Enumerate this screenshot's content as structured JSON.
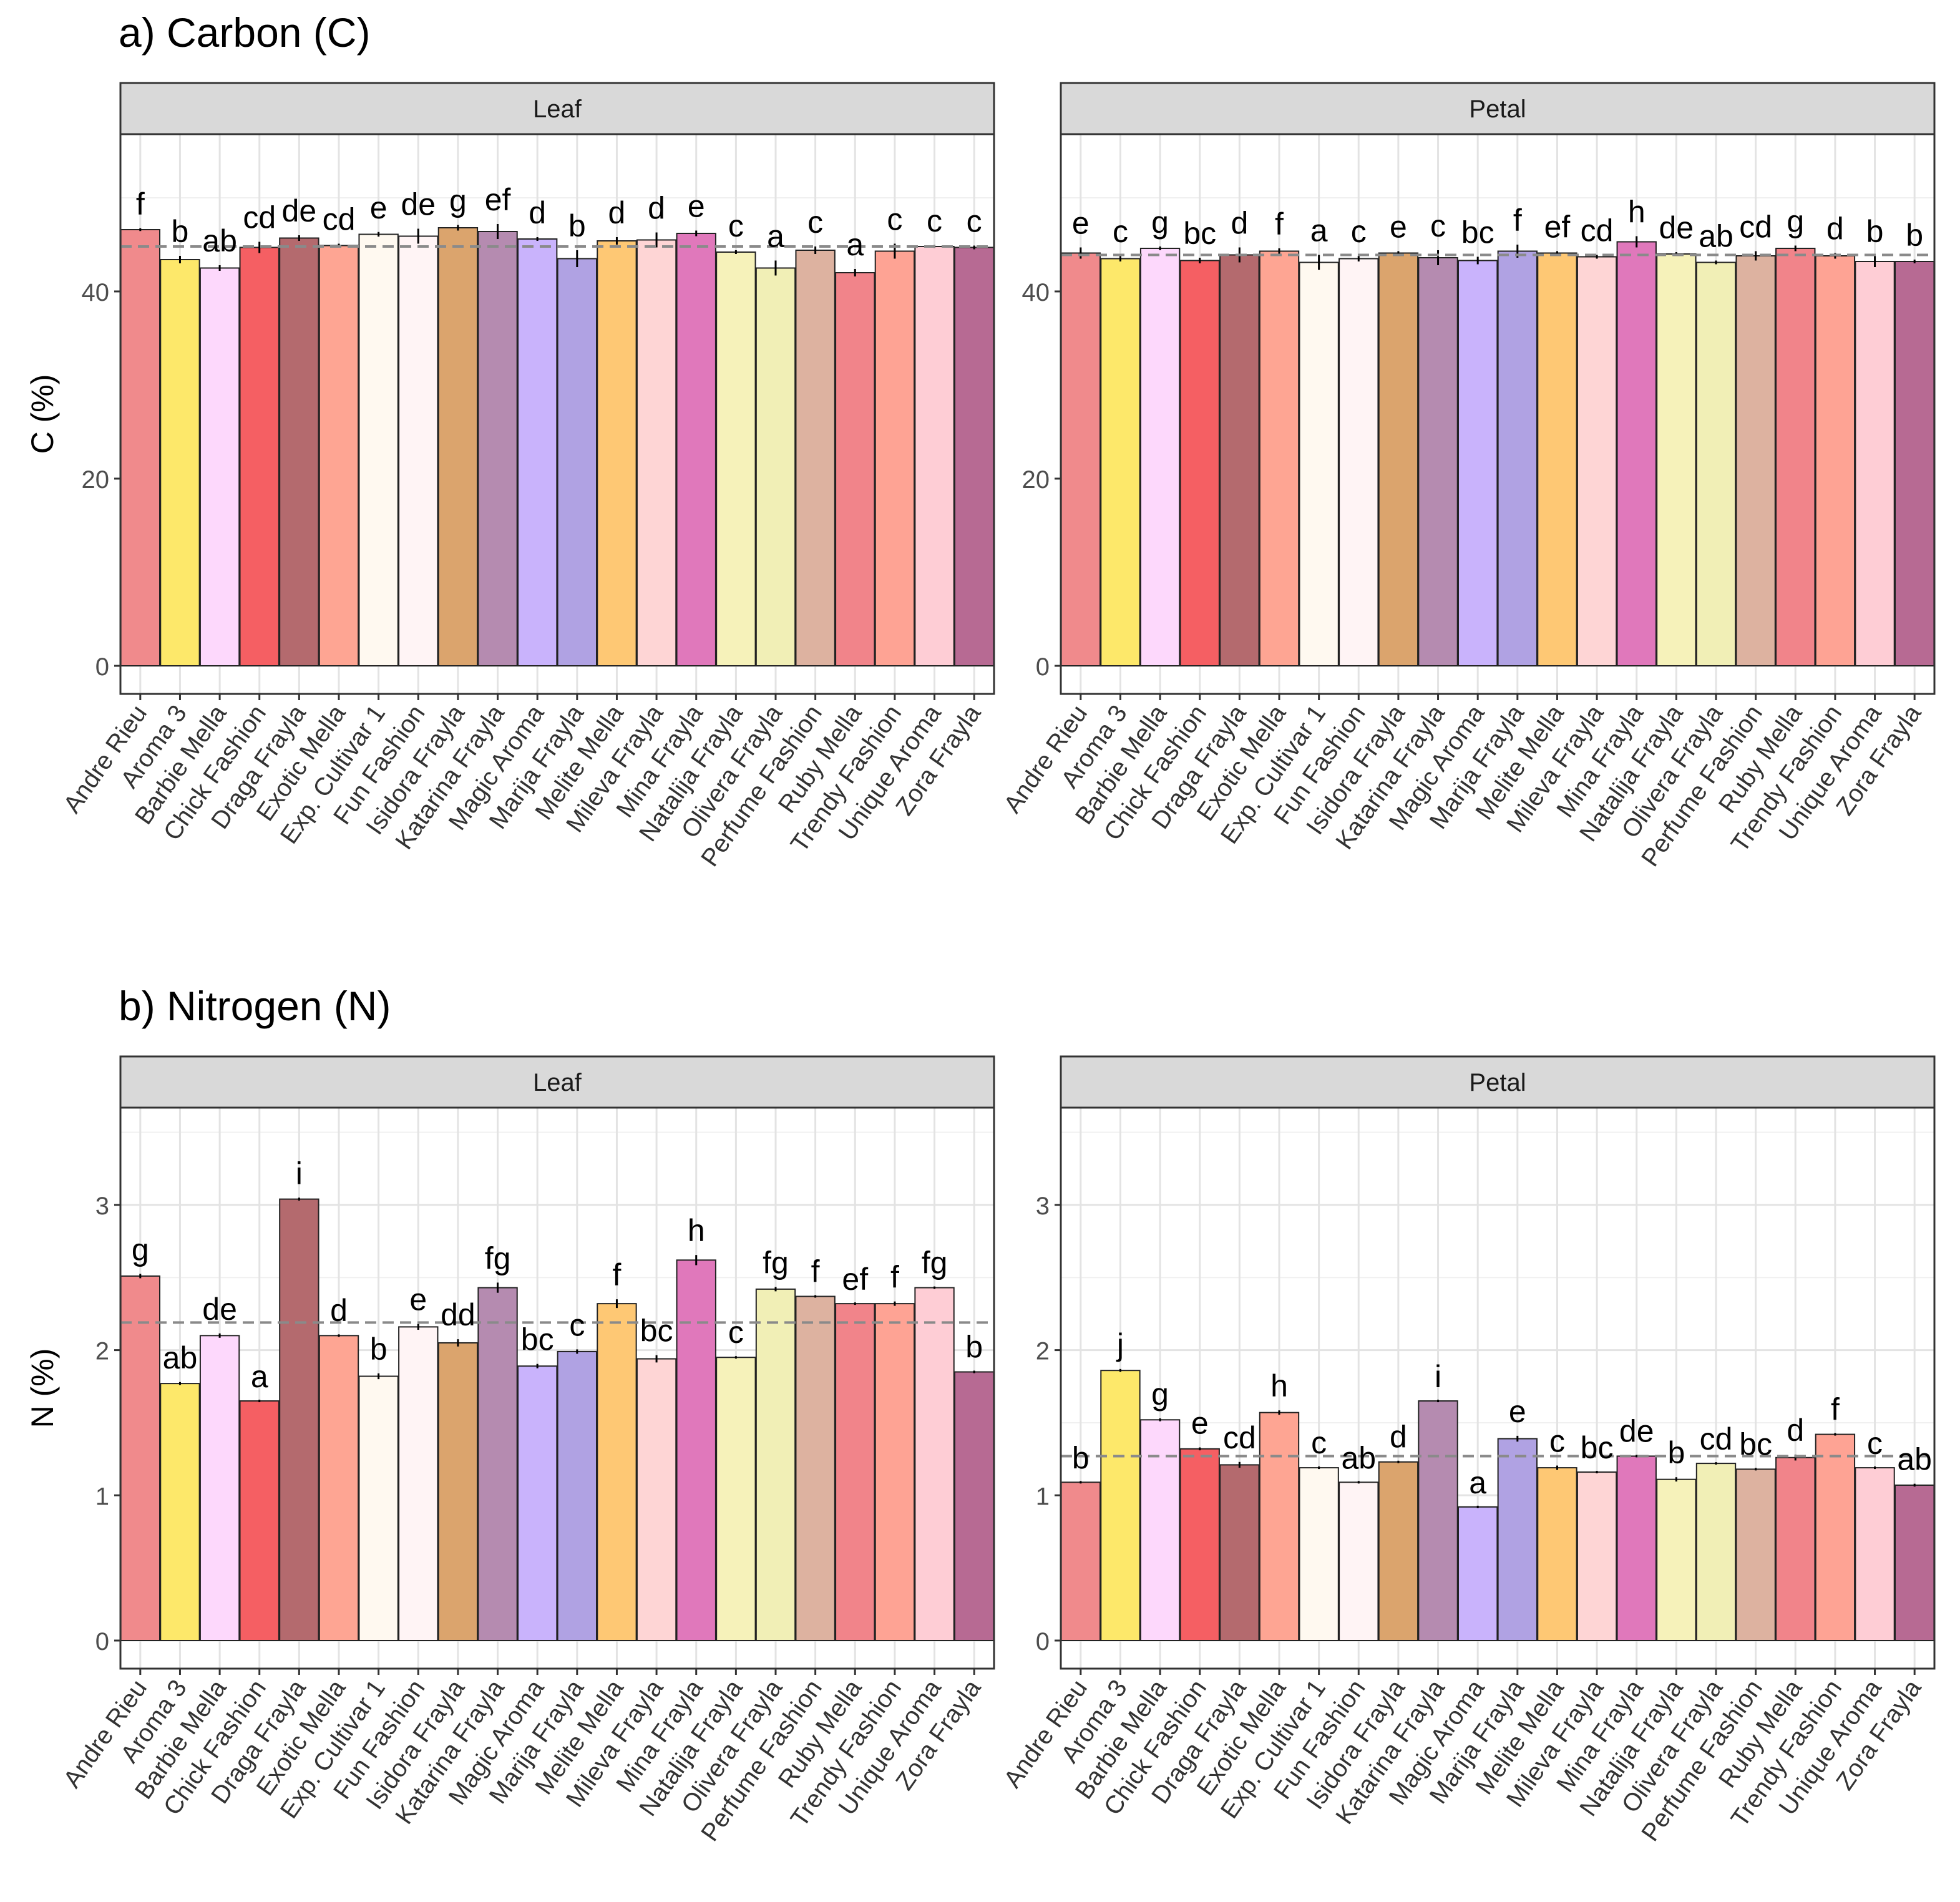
{
  "categories": [
    "Andre Rieu",
    "Aroma 3",
    "Barbie Mella",
    "Chick Fashion",
    "Draga Frayla",
    "Exotic Mella",
    "Exp. Cultivar 1",
    "Fun Fashion",
    "Isidora Frayla",
    "Katarina Frayla",
    "Magic Aroma",
    "Marija Frayla",
    "Melite Mella",
    "Mileva Frayla",
    "Mina Frayla",
    "Natalija Frayla",
    "Olivera Frayla",
    "Perfume Fashion",
    "Ruby Mella",
    "Trendy Fashion",
    "Unique Aroma",
    "Zora Frayla"
  ],
  "bar_colors": [
    "#f08a8c",
    "#fde86a",
    "#fdd8fc",
    "#f55f63",
    "#b46a6e",
    "#fea593",
    "#fff9f0",
    "#fff4f5",
    "#dba46d",
    "#b58bb0",
    "#c9b3fc",
    "#b0a2e3",
    "#fec874",
    "#fed5d5",
    "#e078bb",
    "#f6f2ba",
    "#f1efb6",
    "#ddb2a0",
    "#f1848a",
    "#fea394",
    "#fecdd5",
    "#b76a93"
  ],
  "chart_data": [
    {
      "type": "bar",
      "section_title": "a) Carbon (C)",
      "panel": "Leaf",
      "ylabel": "C (%)",
      "ylim": [
        0,
        56.8
      ],
      "yticks": [
        0,
        20,
        40
      ],
      "grid": true,
      "mean_line": 44.8,
      "values": [
        46.6,
        43.4,
        42.5,
        44.7,
        45.7,
        44.9,
        46.1,
        45.9,
        46.8,
        46.4,
        45.6,
        43.5,
        45.4,
        45.5,
        46.2,
        44.2,
        42.5,
        44.4,
        42.0,
        44.3,
        44.8,
        44.7
      ],
      "errors": [
        0.15,
        0.4,
        0.3,
        0.6,
        0.3,
        0.2,
        0.25,
        0.8,
        0.3,
        0.8,
        0.2,
        0.9,
        0.4,
        0.8,
        0.3,
        0.2,
        0.8,
        0.4,
        0.4,
        0.8,
        0.15,
        0.2
      ],
      "letters": [
        "f",
        "b",
        "ab",
        "cd",
        "de",
        "cd",
        "e",
        "de",
        "g",
        "ef",
        "d",
        "b",
        "d",
        "d",
        "e",
        "c",
        "a",
        "c",
        "a",
        "c",
        "c",
        "c"
      ]
    },
    {
      "type": "bar",
      "section_title": "a) Carbon (C)",
      "panel": "Petal",
      "ylabel": "C (%)",
      "ylim": [
        0,
        56.8
      ],
      "yticks": [
        0,
        20,
        40
      ],
      "grid": true,
      "mean_line": 43.9,
      "values": [
        44.1,
        43.5,
        44.6,
        43.3,
        43.9,
        44.3,
        43.1,
        43.5,
        44.1,
        43.6,
        43.3,
        44.3,
        44.1,
        43.7,
        45.3,
        44.0,
        43.1,
        43.8,
        44.6,
        43.8,
        43.2,
        43.2
      ],
      "errors": [
        0.6,
        0.3,
        0.2,
        0.3,
        0.8,
        0.3,
        0.8,
        0.3,
        0.2,
        0.8,
        0.4,
        0.7,
        0.2,
        0.2,
        0.6,
        0.2,
        0.2,
        0.5,
        0.3,
        0.3,
        0.6,
        0.2
      ],
      "letters": [
        "e",
        "c",
        "g",
        "bc",
        "d",
        "f",
        "a",
        "c",
        "e",
        "c",
        "bc",
        "f",
        "ef",
        "cd",
        "h",
        "de",
        "ab",
        "cd",
        "g",
        "d",
        "b",
        "b"
      ]
    },
    {
      "type": "bar",
      "section_title": "b) Nitrogen (N)",
      "panel": "Leaf",
      "ylabel": "N (%)",
      "ylim": [
        0,
        3.67
      ],
      "yticks": [
        0,
        1,
        2,
        3
      ],
      "grid": true,
      "mean_line": 2.19,
      "values": [
        2.51,
        1.77,
        2.1,
        1.65,
        3.04,
        2.1,
        1.82,
        2.16,
        2.05,
        2.43,
        1.89,
        1.99,
        2.32,
        1.94,
        2.62,
        1.95,
        2.42,
        2.37,
        2.32,
        2.32,
        2.43,
        1.85
      ],
      "errors": [
        0.015,
        0.01,
        0.015,
        0.0,
        0.01,
        0.005,
        0.02,
        0.02,
        0.025,
        0.035,
        0.015,
        0.015,
        0.03,
        0.025,
        0.035,
        0.005,
        0.015,
        0.005,
        0.0,
        0.015,
        0.005,
        0.005
      ],
      "letters": [
        "g",
        "ab",
        "de",
        "a",
        "i",
        "d",
        "b",
        "e",
        "dd",
        "fg",
        "bc",
        "c",
        "f",
        "bc",
        "h",
        "c",
        "fg",
        "f",
        "ef",
        "f",
        "fg",
        "b"
      ]
    },
    {
      "type": "bar",
      "section_title": "b) Nitrogen (N)",
      "panel": "Petal",
      "ylabel": "N (%)",
      "ylim": [
        0,
        3.67
      ],
      "yticks": [
        0,
        1,
        2,
        3
      ],
      "grid": true,
      "mean_line": 1.27,
      "values": [
        1.09,
        1.86,
        1.52,
        1.32,
        1.21,
        1.57,
        1.19,
        1.09,
        1.23,
        1.65,
        0.92,
        1.39,
        1.19,
        1.16,
        1.27,
        1.11,
        1.22,
        1.18,
        1.26,
        1.42,
        1.19,
        1.07
      ],
      "errors": [
        0.0,
        0.01,
        0.01,
        0.01,
        0.02,
        0.015,
        0.005,
        0.0,
        0.005,
        0.0,
        0.0,
        0.02,
        0.015,
        0.0,
        0.005,
        0.015,
        0.0,
        0.005,
        0.02,
        0.005,
        0.0,
        0.01
      ],
      "letters": [
        "b",
        "j",
        "g",
        "e",
        "cd",
        "h",
        "c",
        "ab",
        "d",
        "i",
        "a",
        "e",
        "c",
        "bc",
        "de",
        "b",
        "cd",
        "bc",
        "d",
        "f",
        "c",
        "ab"
      ]
    }
  ]
}
